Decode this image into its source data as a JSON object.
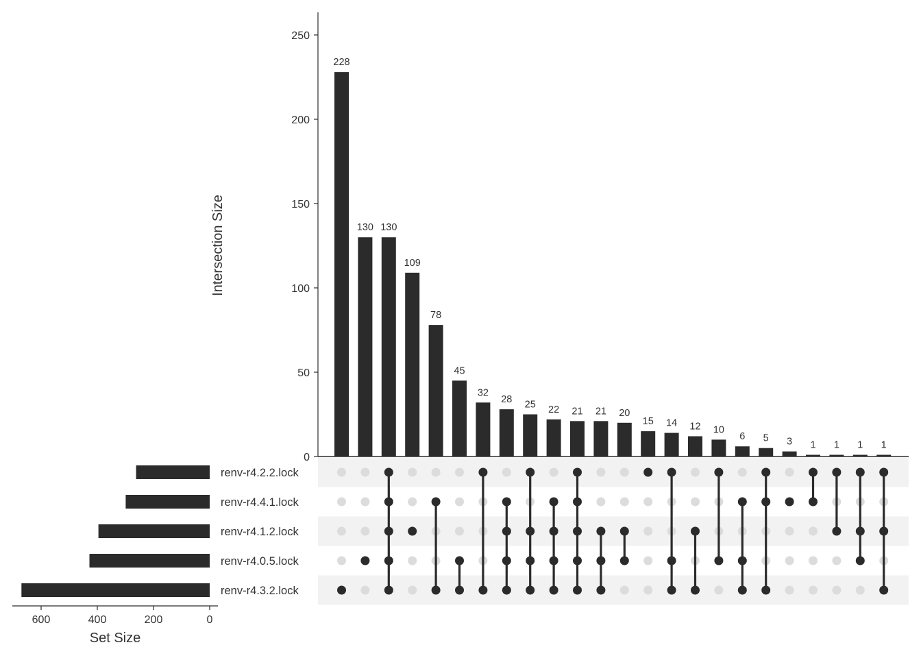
{
  "chart_data": {
    "type": "upset",
    "ylabel": "Intersection Size",
    "xlabel_set_size": "Set Size",
    "yticks": [
      0,
      50,
      100,
      150,
      200,
      250
    ],
    "ylim": [
      0,
      260
    ],
    "set_size_ticks": [
      600,
      400,
      200,
      0
    ],
    "set_size_lim": [
      0,
      700
    ],
    "colors": {
      "bar": "#2b2b2b",
      "dot_on": "#2b2b2b",
      "dot_off": "#dcdcdc",
      "stripe": "#f2f2f2"
    },
    "sets": [
      {
        "name": "renv-r4.2.2.lock",
        "size": 262
      },
      {
        "name": "renv-r4.4.1.lock",
        "size": 299
      },
      {
        "name": "renv-r4.1.2.lock",
        "size": 396
      },
      {
        "name": "renv-r4.0.5.lock",
        "size": 428
      },
      {
        "name": "renv-r4.3.2.lock",
        "size": 670
      }
    ],
    "intersections": [
      {
        "label": "228",
        "value": 228,
        "members": [
          4
        ]
      },
      {
        "label": "130",
        "value": 130,
        "members": [
          3
        ]
      },
      {
        "label": "130",
        "value": 130,
        "members": [
          0,
          1,
          2,
          3,
          4
        ]
      },
      {
        "label": "109",
        "value": 109,
        "members": [
          2
        ]
      },
      {
        "label": "78",
        "value": 78,
        "members": [
          1,
          4
        ]
      },
      {
        "label": "45",
        "value": 45,
        "members": [
          3,
          4
        ]
      },
      {
        "label": "32",
        "value": 32,
        "members": [
          0,
          4
        ]
      },
      {
        "label": "28",
        "value": 28,
        "members": [
          1,
          2,
          3,
          4
        ]
      },
      {
        "label": "25",
        "value": 25,
        "members": [
          0,
          2,
          3,
          4
        ]
      },
      {
        "label": "22",
        "value": 22,
        "members": [
          1,
          2,
          3,
          4
        ]
      },
      {
        "label": "21",
        "value": 21,
        "members": [
          0,
          1,
          2,
          3,
          4
        ]
      },
      {
        "label": "21",
        "value": 21,
        "members": [
          2,
          3,
          4
        ]
      },
      {
        "label": "20",
        "value": 20,
        "members": [
          2,
          3
        ]
      },
      {
        "label": "15",
        "value": 15,
        "members": [
          0
        ]
      },
      {
        "label": "14",
        "value": 14,
        "members": [
          0,
          3,
          4
        ]
      },
      {
        "label": "12",
        "value": 12,
        "members": [
          2,
          4
        ]
      },
      {
        "label": "10",
        "value": 10,
        "members": [
          0,
          3
        ]
      },
      {
        "label": "6",
        "value": 6,
        "members": [
          1,
          3,
          4
        ]
      },
      {
        "label": "5",
        "value": 5,
        "members": [
          0,
          1,
          4
        ]
      },
      {
        "label": "3",
        "value": 3,
        "members": [
          1
        ]
      },
      {
        "label": "1",
        "value": 1,
        "members": [
          0,
          1
        ]
      },
      {
        "label": "1",
        "value": 1,
        "members": [
          0,
          2
        ]
      },
      {
        "label": "1",
        "value": 1,
        "members": [
          0,
          2,
          3
        ]
      },
      {
        "label": "1",
        "value": 1,
        "members": [
          0,
          2,
          4
        ]
      }
    ]
  }
}
